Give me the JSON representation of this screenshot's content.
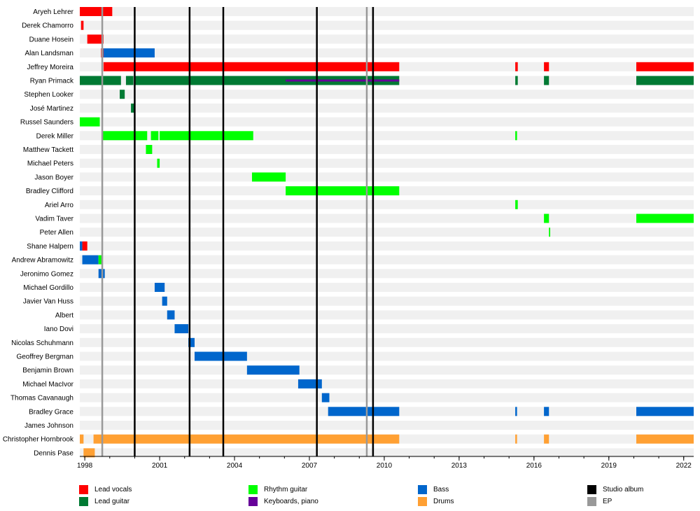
{
  "chart_data": {
    "type": "timeline",
    "x_range": [
      1997.8,
      2022.4
    ],
    "tick_labels": [
      "1998",
      "2001",
      "2004",
      "2007",
      "2010",
      "2013",
      "2016",
      "2019",
      "2022"
    ],
    "tick_values": [
      1998,
      2001,
      2004,
      2007,
      2010,
      2013,
      2016,
      2019,
      2022
    ],
    "colors": {
      "vocals": "#ff0000",
      "leadguitar": "#007a33",
      "rhythm": "#00ff00",
      "keys": "#660099",
      "bass": "#0066cc",
      "drums": "#ffa033",
      "studio": "#000000",
      "ep": "#999999",
      "rowbg": "#f0f0f0"
    },
    "legend": [
      {
        "key": "vocals",
        "label": "Lead vocals"
      },
      {
        "key": "leadguitar",
        "label": "Lead guitar"
      },
      {
        "key": "rhythm",
        "label": "Rhythm guitar"
      },
      {
        "key": "keys",
        "label": "Keyboards, piano"
      },
      {
        "key": "bass",
        "label": "Bass"
      },
      {
        "key": "drums",
        "label": "Drums"
      },
      {
        "key": "studio",
        "label": "Studio album"
      },
      {
        "key": "ep",
        "label": "EP"
      }
    ],
    "studio_albums": [
      2000.0,
      2002.2,
      2003.55,
      2007.3,
      2009.55
    ],
    "eps": [
      1998.7,
      2009.3
    ],
    "members": [
      {
        "name": "Aryeh Lehrer",
        "bars": [
          {
            "role": "vocals",
            "start": 1997.8,
            "end": 1999.1
          }
        ]
      },
      {
        "name": "Derek Chamorro",
        "bars": [
          {
            "role": "vocals",
            "start": 1997.85,
            "end": 1997.95
          }
        ]
      },
      {
        "name": "Duane Hosein",
        "bars": [
          {
            "role": "vocals",
            "start": 1998.1,
            "end": 1998.75
          }
        ]
      },
      {
        "name": "Alan Landsman",
        "bars": [
          {
            "role": "vocals",
            "start": 1998.65,
            "end": 1998.75
          },
          {
            "role": "bass",
            "start": 1998.75,
            "end": 2000.8
          }
        ]
      },
      {
        "name": "Jeffrey Moreira",
        "bars": [
          {
            "role": "vocals",
            "start": 1998.75,
            "end": 2010.6
          },
          {
            "role": "vocals",
            "start": 2015.25,
            "end": 2015.35
          },
          {
            "role": "vocals",
            "start": 2016.4,
            "end": 2016.6
          },
          {
            "role": "vocals",
            "start": 2020.1,
            "end": 2022.4
          }
        ]
      },
      {
        "name": "Ryan Primack",
        "bars": [
          {
            "role": "leadguitar",
            "start": 1997.8,
            "end": 1999.45
          },
          {
            "role": "leadguitar",
            "start": 1999.65,
            "end": 1999.95
          },
          {
            "role": "leadguitar",
            "start": 2000.0,
            "end": 2010.6
          },
          {
            "role": "keys",
            "start": 2006.05,
            "end": 2010.6,
            "thin": true
          },
          {
            "role": "leadguitar",
            "start": 2015.25,
            "end": 2015.35
          },
          {
            "role": "leadguitar",
            "start": 2016.4,
            "end": 2016.6
          },
          {
            "role": "leadguitar",
            "start": 2020.1,
            "end": 2022.4
          }
        ]
      },
      {
        "name": "Stephen Looker",
        "bars": [
          {
            "role": "leadguitar",
            "start": 1999.4,
            "end": 1999.6
          }
        ]
      },
      {
        "name": "José Martinez",
        "bars": [
          {
            "role": "leadguitar",
            "start": 1999.85,
            "end": 2000.0
          }
        ]
      },
      {
        "name": "Russel Saunders",
        "bars": [
          {
            "role": "rhythm",
            "start": 1997.8,
            "end": 1998.6
          }
        ]
      },
      {
        "name": "Derek Miller",
        "bars": [
          {
            "role": "rhythm",
            "start": 1998.7,
            "end": 2000.5
          },
          {
            "role": "rhythm",
            "start": 2000.65,
            "end": 2000.95
          },
          {
            "role": "rhythm",
            "start": 2001.0,
            "end": 2004.75
          },
          {
            "role": "rhythm",
            "start": 2015.25,
            "end": 2015.32
          }
        ]
      },
      {
        "name": "Matthew Tackett",
        "bars": [
          {
            "role": "rhythm",
            "start": 2000.45,
            "end": 2000.7
          }
        ]
      },
      {
        "name": "Michael Peters",
        "bars": [
          {
            "role": "rhythm",
            "start": 2000.9,
            "end": 2001.0
          }
        ]
      },
      {
        "name": "Jason Boyer",
        "bars": [
          {
            "role": "rhythm",
            "start": 2004.7,
            "end": 2006.05
          }
        ]
      },
      {
        "name": "Bradley Clifford",
        "bars": [
          {
            "role": "rhythm",
            "start": 2006.05,
            "end": 2010.6
          }
        ]
      },
      {
        "name": "Ariel Arro",
        "bars": [
          {
            "role": "rhythm",
            "start": 2015.25,
            "end": 2015.35
          }
        ]
      },
      {
        "name": "Vadim Taver",
        "bars": [
          {
            "role": "rhythm",
            "start": 2016.4,
            "end": 2016.6
          },
          {
            "role": "rhythm",
            "start": 2020.1,
            "end": 2022.4
          }
        ]
      },
      {
        "name": "Peter Allen",
        "bars": [
          {
            "role": "rhythm",
            "start": 2016.6,
            "end": 2016.65
          }
        ]
      },
      {
        "name": "Shane Halpern",
        "bars": [
          {
            "role": "bass",
            "start": 1997.8,
            "end": 1997.9
          },
          {
            "role": "vocals",
            "start": 1997.9,
            "end": 1998.1
          }
        ]
      },
      {
        "name": "Andrew Abramowitz",
        "bars": [
          {
            "role": "bass",
            "start": 1997.9,
            "end": 1998.55
          },
          {
            "role": "rhythm",
            "start": 1998.55,
            "end": 1998.7
          }
        ]
      },
      {
        "name": "Jeronimo Gomez",
        "bars": [
          {
            "role": "bass",
            "start": 1998.55,
            "end": 1998.8
          }
        ]
      },
      {
        "name": "Michael Gordillo",
        "bars": [
          {
            "role": "bass",
            "start": 2000.8,
            "end": 2001.2
          }
        ]
      },
      {
        "name": "Javier Van Huss",
        "bars": [
          {
            "role": "bass",
            "start": 2001.1,
            "end": 2001.3
          }
        ]
      },
      {
        "name": "Albert",
        "bars": [
          {
            "role": "bass",
            "start": 2001.3,
            "end": 2001.6
          }
        ]
      },
      {
        "name": "Iano Dovi",
        "bars": [
          {
            "role": "bass",
            "start": 2001.6,
            "end": 2002.15
          }
        ]
      },
      {
        "name": "Nicolas Schuhmann",
        "bars": [
          {
            "role": "bass",
            "start": 2002.15,
            "end": 2002.4
          }
        ]
      },
      {
        "name": "Geoffrey Bergman",
        "bars": [
          {
            "role": "bass",
            "start": 2002.4,
            "end": 2004.5
          }
        ]
      },
      {
        "name": "Benjamin Brown",
        "bars": [
          {
            "role": "bass",
            "start": 2004.5,
            "end": 2006.6
          }
        ]
      },
      {
        "name": "Michael MacIvor",
        "bars": [
          {
            "role": "bass",
            "start": 2006.55,
            "end": 2007.5
          }
        ]
      },
      {
        "name": "Thomas Cavanaugh",
        "bars": [
          {
            "role": "bass",
            "start": 2007.5,
            "end": 2007.8
          }
        ]
      },
      {
        "name": "Bradley Grace",
        "bars": [
          {
            "role": "bass",
            "start": 2007.75,
            "end": 2010.6
          },
          {
            "role": "bass",
            "start": 2015.25,
            "end": 2015.32
          },
          {
            "role": "bass",
            "start": 2016.4,
            "end": 2016.6
          },
          {
            "role": "bass",
            "start": 2020.1,
            "end": 2022.4
          }
        ]
      },
      {
        "name": "James Johnson",
        "bars": []
      },
      {
        "name": "Christopher Hornbrook",
        "bars": [
          {
            "role": "drums",
            "start": 1997.8,
            "end": 1997.95
          },
          {
            "role": "drums",
            "start": 1998.35,
            "end": 2010.6
          },
          {
            "role": "drums",
            "start": 2015.25,
            "end": 2015.32
          },
          {
            "role": "drums",
            "start": 2016.4,
            "end": 2016.6
          },
          {
            "role": "drums",
            "start": 2020.1,
            "end": 2022.4
          }
        ]
      },
      {
        "name": "Dennis Pase",
        "bars": [
          {
            "role": "drums",
            "start": 1997.95,
            "end": 1998.4
          }
        ]
      }
    ]
  }
}
